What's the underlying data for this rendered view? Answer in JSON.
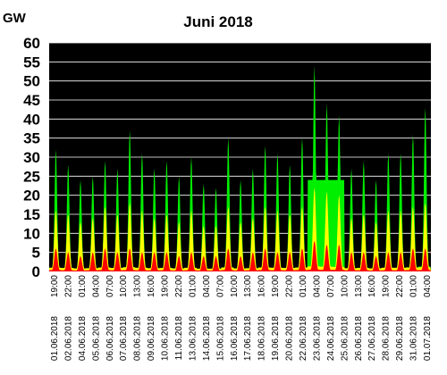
{
  "chart_data": {
    "type": "area",
    "title": "Juni 2018",
    "ylabel": "GW",
    "xlabel": "",
    "ylim": [
      0,
      60
    ],
    "yticks": [
      0,
      5,
      10,
      15,
      20,
      25,
      30,
      35,
      40,
      45,
      50,
      55,
      60
    ],
    "x_tick_labels": [
      "01.06.2018 19:00",
      "02.06.2018 22:00",
      "04.06.2018 01:00",
      "05.06.2018 04:00",
      "06.06.2018 07:00",
      "07.06.2018 10:00",
      "08.06.2018 13:00",
      "09.06.2018 16:00",
      "10.06.2018 19:00",
      "11.06.2018 22:00",
      "13.06.2018 01:00",
      "14.06.2018 04:00",
      "15.06.2018 07:00",
      "16.06.2018 10:00",
      "17.06.2018 13:00",
      "18.06.2018 16:00",
      "19.06.2018 19:00",
      "20.06.2018 22:00",
      "22.06.2018 01:00",
      "23.06.2018 04:00",
      "24.06.2018 07:00",
      "25.06.2018 10:00",
      "26.06.2018 13:00",
      "27.06.2018 16:00",
      "28.06.2018 19:00",
      "29.06.2018 22:00",
      "31.06.2018 01:00",
      "01.07.2018 04:00"
    ],
    "plot_background": "#000000",
    "grid": true,
    "grid_color": "#ffffff",
    "series": [
      {
        "color": "#00ee00",
        "daily_peaks": [
          32,
          28,
          24,
          25,
          29,
          27,
          37,
          31,
          27,
          29,
          25,
          30,
          23,
          22,
          35,
          24,
          27,
          33,
          31,
          28,
          35,
          54,
          44,
          41,
          27,
          29,
          24,
          31,
          31,
          36,
          43
        ]
      },
      {
        "color": "#ffff00",
        "daily_peaks": [
          16,
          15,
          13,
          14,
          17,
          15,
          18,
          16,
          14,
          15,
          13,
          16,
          12,
          12,
          17,
          13,
          14,
          17,
          16,
          15,
          17,
          22,
          21,
          20,
          14,
          15,
          13,
          16,
          16,
          17,
          18
        ]
      },
      {
        "color": "#ff0000",
        "daily_peaks": [
          6,
          5,
          4,
          5,
          6,
          5,
          6,
          5,
          5,
          5,
          4,
          5,
          4,
          4,
          6,
          4,
          5,
          6,
          5,
          5,
          6,
          8,
          7,
          7,
          5,
          5,
          4,
          5,
          5,
          6,
          6
        ]
      }
    ]
  }
}
